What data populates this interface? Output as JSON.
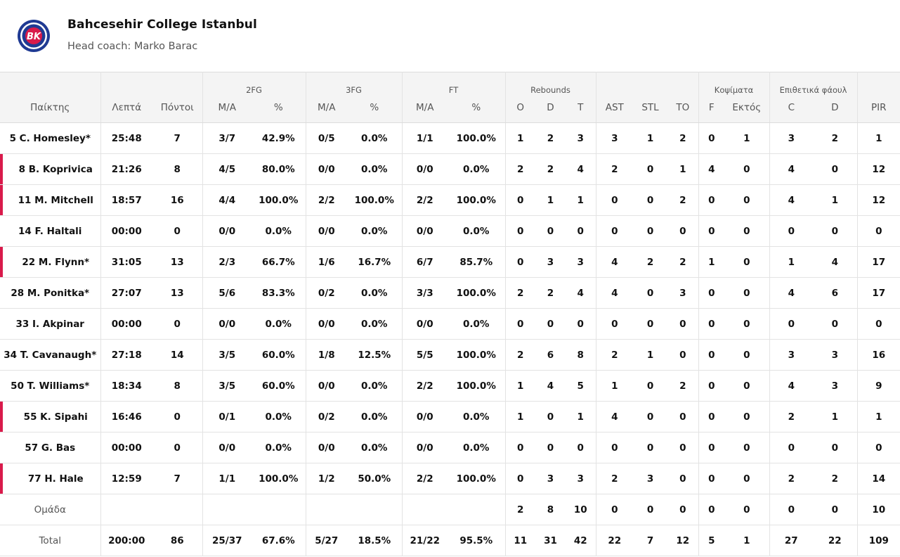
{
  "team": {
    "name": "Bahcesehir College Istanbul",
    "coach": "Head coach: Marko Barac",
    "logo_text": "BK",
    "logo_colors": {
      "outer": "#1f3a93",
      "ring": "#ffffff",
      "inner": "#d91a4b"
    }
  },
  "accent_color": "#d91a4b",
  "groups": {
    "fg2": "2FG",
    "fg3": "3FG",
    "ft": "FT",
    "rebounds": "Rebounds",
    "blocks": "Κοψίματα",
    "fouls": "Επιθετικά φάουλ"
  },
  "columns": {
    "player": "Παίκτης",
    "minutes": "Λεπτά",
    "points": "Πόντοι",
    "fg2_ma": "M/A",
    "fg2_pct": "%",
    "fg3_ma": "M/A",
    "fg3_pct": "%",
    "ft_ma": "M/A",
    "ft_pct": "%",
    "reb_o": "O",
    "reb_d": "D",
    "reb_t": "T",
    "ast": "AST",
    "stl": "STL",
    "to": "TO",
    "blk_f": "F",
    "blk_a": "Εκτός",
    "foul_c": "C",
    "foul_d": "D",
    "pir": "PIR"
  },
  "players": [
    {
      "name": "5 C. Homesley*",
      "sub": false,
      "min": "25:48",
      "pts": "7",
      "fg2": "3/7",
      "fg2p": "42.9%",
      "fg3": "0/5",
      "fg3p": "0.0%",
      "ft": "1/1",
      "ftp": "100.0%",
      "o": "1",
      "d": "2",
      "t": "3",
      "ast": "3",
      "stl": "1",
      "to": "2",
      "bf": "0",
      "ba": "1",
      "fc": "3",
      "fd": "2",
      "pir": "1"
    },
    {
      "name": "8 B. Koprivica",
      "sub": true,
      "min": "21:26",
      "pts": "8",
      "fg2": "4/5",
      "fg2p": "80.0%",
      "fg3": "0/0",
      "fg3p": "0.0%",
      "ft": "0/0",
      "ftp": "0.0%",
      "o": "2",
      "d": "2",
      "t": "4",
      "ast": "2",
      "stl": "0",
      "to": "1",
      "bf": "4",
      "ba": "0",
      "fc": "4",
      "fd": "0",
      "pir": "12"
    },
    {
      "name": "11 M. Mitchell",
      "sub": true,
      "min": "18:57",
      "pts": "16",
      "fg2": "4/4",
      "fg2p": "100.0%",
      "fg3": "2/2",
      "fg3p": "100.0%",
      "ft": "2/2",
      "ftp": "100.0%",
      "o": "0",
      "d": "1",
      "t": "1",
      "ast": "0",
      "stl": "0",
      "to": "2",
      "bf": "0",
      "ba": "0",
      "fc": "4",
      "fd": "1",
      "pir": "12"
    },
    {
      "name": "14 F. Haltali",
      "sub": false,
      "min": "00:00",
      "pts": "0",
      "fg2": "0/0",
      "fg2p": "0.0%",
      "fg3": "0/0",
      "fg3p": "0.0%",
      "ft": "0/0",
      "ftp": "0.0%",
      "o": "0",
      "d": "0",
      "t": "0",
      "ast": "0",
      "stl": "0",
      "to": "0",
      "bf": "0",
      "ba": "0",
      "fc": "0",
      "fd": "0",
      "pir": "0"
    },
    {
      "name": "22 M. Flynn*",
      "sub": true,
      "min": "31:05",
      "pts": "13",
      "fg2": "2/3",
      "fg2p": "66.7%",
      "fg3": "1/6",
      "fg3p": "16.7%",
      "ft": "6/7",
      "ftp": "85.7%",
      "o": "0",
      "d": "3",
      "t": "3",
      "ast": "4",
      "stl": "2",
      "to": "2",
      "bf": "1",
      "ba": "0",
      "fc": "1",
      "fd": "4",
      "pir": "17"
    },
    {
      "name": "28 M. Ponitka*",
      "sub": false,
      "min": "27:07",
      "pts": "13",
      "fg2": "5/6",
      "fg2p": "83.3%",
      "fg3": "0/2",
      "fg3p": "0.0%",
      "ft": "3/3",
      "ftp": "100.0%",
      "o": "2",
      "d": "2",
      "t": "4",
      "ast": "4",
      "stl": "0",
      "to": "3",
      "bf": "0",
      "ba": "0",
      "fc": "4",
      "fd": "6",
      "pir": "17"
    },
    {
      "name": "33 I. Akpinar",
      "sub": false,
      "min": "00:00",
      "pts": "0",
      "fg2": "0/0",
      "fg2p": "0.0%",
      "fg3": "0/0",
      "fg3p": "0.0%",
      "ft": "0/0",
      "ftp": "0.0%",
      "o": "0",
      "d": "0",
      "t": "0",
      "ast": "0",
      "stl": "0",
      "to": "0",
      "bf": "0",
      "ba": "0",
      "fc": "0",
      "fd": "0",
      "pir": "0"
    },
    {
      "name": "34 T. Cavanaugh*",
      "sub": false,
      "min": "27:18",
      "pts": "14",
      "fg2": "3/5",
      "fg2p": "60.0%",
      "fg3": "1/8",
      "fg3p": "12.5%",
      "ft": "5/5",
      "ftp": "100.0%",
      "o": "2",
      "d": "6",
      "t": "8",
      "ast": "2",
      "stl": "1",
      "to": "0",
      "bf": "0",
      "ba": "0",
      "fc": "3",
      "fd": "3",
      "pir": "16"
    },
    {
      "name": "50 T. Williams*",
      "sub": false,
      "min": "18:34",
      "pts": "8",
      "fg2": "3/5",
      "fg2p": "60.0%",
      "fg3": "0/0",
      "fg3p": "0.0%",
      "ft": "2/2",
      "ftp": "100.0%",
      "o": "1",
      "d": "4",
      "t": "5",
      "ast": "1",
      "stl": "0",
      "to": "2",
      "bf": "0",
      "ba": "0",
      "fc": "4",
      "fd": "3",
      "pir": "9"
    },
    {
      "name": "55 K. Sipahi",
      "sub": true,
      "min": "16:46",
      "pts": "0",
      "fg2": "0/1",
      "fg2p": "0.0%",
      "fg3": "0/2",
      "fg3p": "0.0%",
      "ft": "0/0",
      "ftp": "0.0%",
      "o": "1",
      "d": "0",
      "t": "1",
      "ast": "4",
      "stl": "0",
      "to": "0",
      "bf": "0",
      "ba": "0",
      "fc": "2",
      "fd": "1",
      "pir": "1"
    },
    {
      "name": "57 G. Bas",
      "sub": false,
      "min": "00:00",
      "pts": "0",
      "fg2": "0/0",
      "fg2p": "0.0%",
      "fg3": "0/0",
      "fg3p": "0.0%",
      "ft": "0/0",
      "ftp": "0.0%",
      "o": "0",
      "d": "0",
      "t": "0",
      "ast": "0",
      "stl": "0",
      "to": "0",
      "bf": "0",
      "ba": "0",
      "fc": "0",
      "fd": "0",
      "pir": "0"
    },
    {
      "name": "77 H. Hale",
      "sub": true,
      "min": "12:59",
      "pts": "7",
      "fg2": "1/1",
      "fg2p": "100.0%",
      "fg3": "1/2",
      "fg3p": "50.0%",
      "ft": "2/2",
      "ftp": "100.0%",
      "o": "0",
      "d": "3",
      "t": "3",
      "ast": "2",
      "stl": "3",
      "to": "0",
      "bf": "0",
      "ba": "0",
      "fc": "2",
      "fd": "2",
      "pir": "14"
    }
  ],
  "team_row": {
    "name": "Ομάδα",
    "min": "",
    "pts": "",
    "fg2": "",
    "fg2p": "",
    "fg3": "",
    "fg3p": "",
    "ft": "",
    "ftp": "",
    "o": "2",
    "d": "8",
    "t": "10",
    "ast": "0",
    "stl": "0",
    "to": "0",
    "bf": "0",
    "ba": "0",
    "fc": "0",
    "fd": "0",
    "pir": "10"
  },
  "total_row": {
    "name": "Total",
    "min": "200:00",
    "pts": "86",
    "fg2": "25/37",
    "fg2p": "67.6%",
    "fg3": "5/27",
    "fg3p": "18.5%",
    "ft": "21/22",
    "ftp": "95.5%",
    "o": "11",
    "d": "31",
    "t": "42",
    "ast": "22",
    "stl": "7",
    "to": "12",
    "bf": "5",
    "ba": "1",
    "fc": "27",
    "fd": "22",
    "pir": "109"
  }
}
